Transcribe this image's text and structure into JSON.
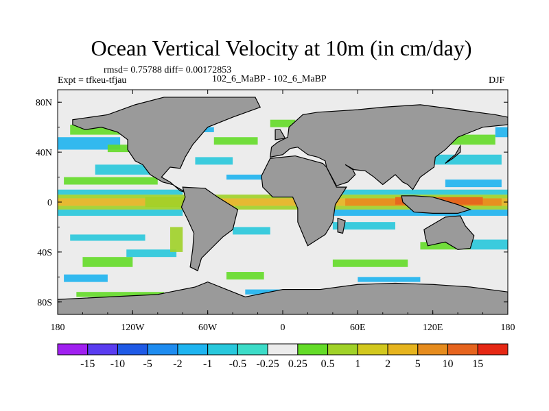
{
  "chart_data": {
    "type": "heatmap",
    "title": "Ocean Vertical Velocity at 10m (in cm/day)",
    "stats": "rmsd= 0.75788 diff= 0.00172853",
    "experiment_label": "Expt = tfkeu-tfjau",
    "comparison": "102_6_MaBP - 102_6_MaBP",
    "season": "DJF",
    "x_ticks": [
      "180",
      "120W",
      "60W",
      "0",
      "60E",
      "120E",
      "180"
    ],
    "y_ticks": [
      "80N",
      "40N",
      "0",
      "40S",
      "80S"
    ],
    "xlim": [
      -180,
      180
    ],
    "ylim": [
      -90,
      90
    ],
    "land_color": "#9a9a9a",
    "colorbar": {
      "colors": [
        "#a020f0",
        "#5a3cf0",
        "#1f5ae6",
        "#1e8cf0",
        "#1eb4f0",
        "#28c8dc",
        "#3cdcc8",
        "#ececec",
        "#64dc28",
        "#a0d228",
        "#d2c81e",
        "#e6b41e",
        "#e68c1e",
        "#e6641e",
        "#e62814"
      ],
      "labels": [
        "-15",
        "-10",
        "-5",
        "-2",
        "-1",
        "-0.5",
        "-0.25",
        "0.25",
        "0.5",
        "1",
        "2",
        "5",
        "10",
        "15"
      ]
    }
  }
}
